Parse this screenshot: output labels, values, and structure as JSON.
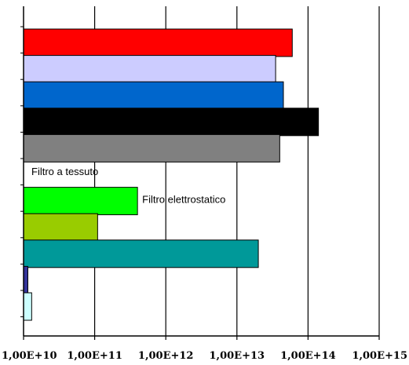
{
  "chart_data": {
    "type": "bar",
    "orientation": "horizontal",
    "x_scale": "log",
    "xlim": [
      10000000000.0,
      1000000000000000.0
    ],
    "grid": true,
    "legend": "none",
    "title": "",
    "xlabel": "",
    "ylabel": "",
    "tick_labels": [
      "1,00E+10",
      "1,00E+11",
      "1,00E+12",
      "1,00E+13",
      "1,00E+14",
      "1,00E+15"
    ],
    "bars": [
      {
        "value": 60000000000000.0,
        "color": "#ff0000",
        "label": ""
      },
      {
        "value": 35000000000000.0,
        "color": "#ccccff",
        "label": ""
      },
      {
        "value": 45000000000000.0,
        "color": "#0066cc",
        "label": ""
      },
      {
        "value": 140000000000000.0,
        "color": "#000000",
        "label": ""
      },
      {
        "value": 40000000000000.0,
        "color": "#808080",
        "label": ""
      },
      {
        "value": 10000000000.0,
        "color": "#ffffff",
        "label": "Filtro a tessuto"
      },
      {
        "value": 400000000000.0,
        "color": "#00ff00",
        "label": "Filtro elettrostatico"
      },
      {
        "value": 110000000000.0,
        "color": "#99cc00",
        "label": ""
      },
      {
        "value": 20000000000000.0,
        "color": "#009999",
        "label": ""
      },
      {
        "value": 11500000000.0,
        "color": "#333399",
        "label": ""
      },
      {
        "value": 13000000000.0,
        "color": "#ccffff",
        "label": ""
      }
    ]
  }
}
